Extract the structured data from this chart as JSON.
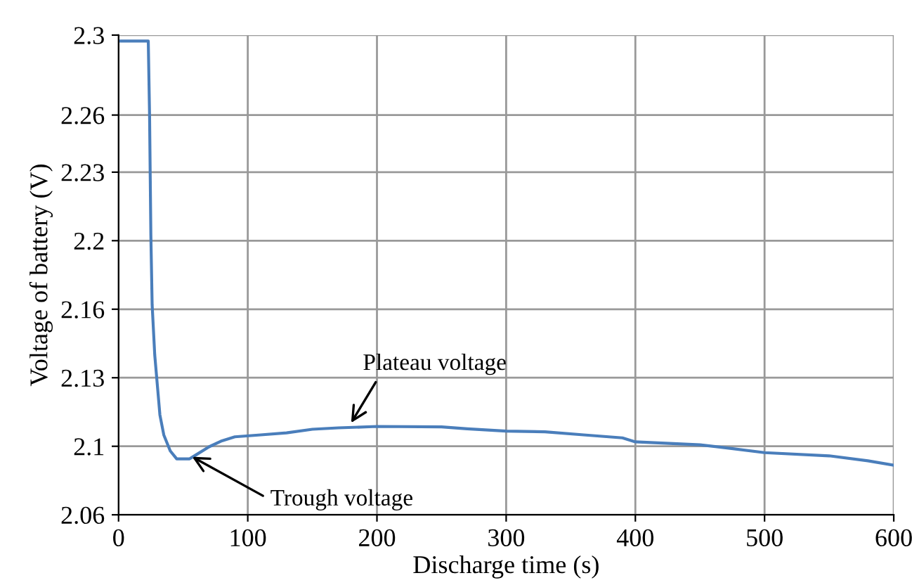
{
  "chart_data": {
    "type": "line",
    "xlabel": "Discharge time (s)",
    "ylabel": "Voltage of battery (V)",
    "xlim": [
      0,
      600
    ],
    "xticks": [
      0,
      100,
      200,
      300,
      400,
      500,
      600
    ],
    "ylim": [
      2.06,
      2.3
    ],
    "yticks": [
      {
        "value": 2.06,
        "label": "2.06"
      },
      {
        "value": 2.094286,
        "label": "2.1"
      },
      {
        "value": 2.128571,
        "label": "2.13"
      },
      {
        "value": 2.162857,
        "label": "2.16"
      },
      {
        "value": 2.197143,
        "label": "2.2"
      },
      {
        "value": 2.231429,
        "label": "2.23"
      },
      {
        "value": 2.26,
        "label": "2.26"
      },
      {
        "value": 2.3,
        "label": "2.3"
      }
    ],
    "grid": true,
    "marker": "none",
    "line_style": "solid",
    "x": [
      0,
      23,
      24,
      25,
      26,
      28,
      30,
      32,
      35,
      40,
      45,
      55,
      60,
      70,
      80,
      90,
      110,
      130,
      150,
      170,
      200,
      250,
      270,
      300,
      330,
      360,
      390,
      400,
      450,
      470,
      500,
      550,
      580,
      600
    ],
    "series": [
      {
        "color": "#4a7ebb",
        "values": [
          2.297,
          2.297,
          2.26,
          2.2,
          2.165,
          2.14,
          2.125,
          2.11,
          2.1,
          2.092,
          2.088,
          2.088,
          2.09,
          2.094,
          2.097,
          2.099,
          2.1,
          2.101,
          2.1028,
          2.1035,
          2.1042,
          2.104,
          2.103,
          2.1019,
          2.1015,
          2.1,
          2.0985,
          2.0965,
          2.095,
          2.0935,
          2.0911,
          2.0895,
          2.087,
          2.0848
        ]
      }
    ],
    "annotations": [
      {
        "text": "Plateau voltage",
        "x": 180,
        "y": 2.106
      },
      {
        "text": "Trough voltage",
        "x": 57,
        "y": 2.089
      }
    ]
  }
}
